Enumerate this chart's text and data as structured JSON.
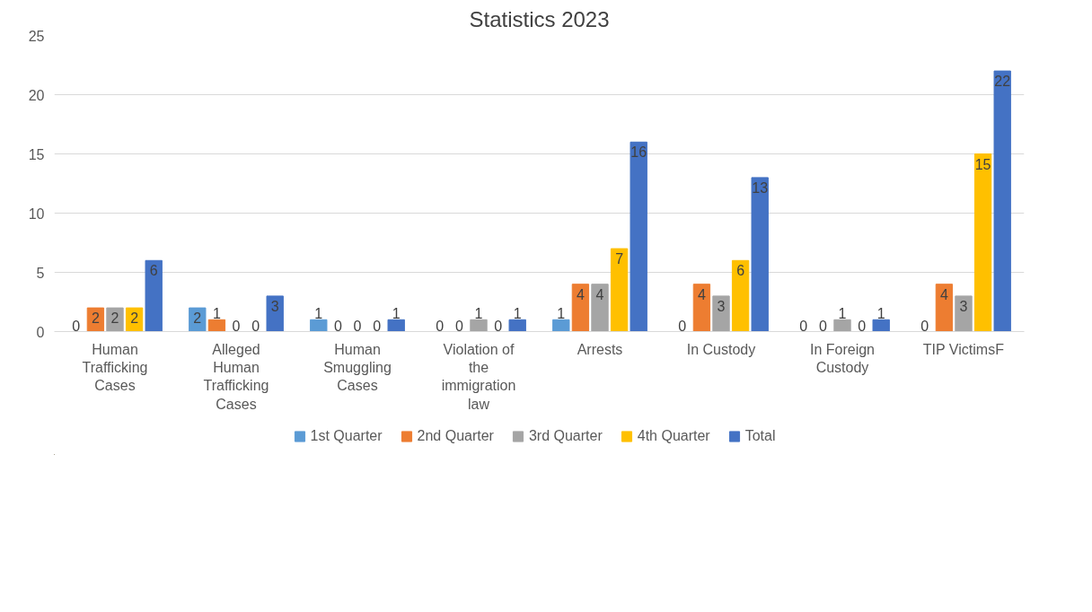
{
  "chart_data": {
    "type": "bar",
    "title": "Statistics 2023",
    "categories": [
      "Human Trafficking Cases",
      "Alleged Human Trafficking Cases",
      "Human Smuggling Cases",
      "Violation of the immigration law",
      "Arrests",
      "In Custody",
      "In Foreign Custody",
      "TIP VictimsF"
    ],
    "series": [
      {
        "name": "1st Quarter",
        "color": "#5b9bd5",
        "values": [
          0,
          2,
          1,
          0,
          1,
          0,
          0,
          0
        ]
      },
      {
        "name": "2nd Quarter",
        "color": "#ed7d31",
        "values": [
          2,
          1,
          0,
          0,
          4,
          4,
          0,
          4
        ]
      },
      {
        "name": "3rd Quarter",
        "color": "#a5a5a5",
        "values": [
          2,
          0,
          0,
          1,
          4,
          3,
          1,
          3
        ]
      },
      {
        "name": "4th Quarter",
        "color": "#ffc000",
        "values": [
          2,
          0,
          0,
          0,
          7,
          6,
          0,
          15
        ]
      },
      {
        "name": "Total",
        "color": "#4472c4",
        "values": [
          6,
          3,
          1,
          1,
          16,
          13,
          1,
          22
        ]
      }
    ],
    "ylim": [
      0,
      25
    ],
    "yticks": [
      0,
      5,
      10,
      15,
      20,
      25
    ],
    "grid": "y",
    "legend": "bottom",
    "data_labels": true
  }
}
